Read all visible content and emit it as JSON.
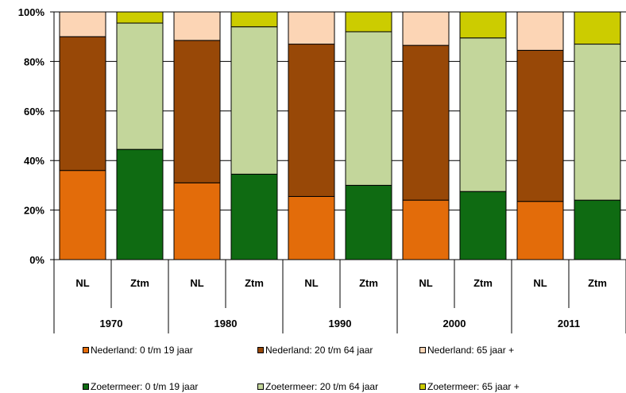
{
  "chart_data": {
    "type": "bar",
    "stacked": true,
    "percent": true,
    "y_ticks": [
      "0%",
      "20%",
      "40%",
      "60%",
      "80%",
      "100%"
    ],
    "ylim": [
      0,
      100
    ],
    "grid": true,
    "legend_position": "bottom",
    "groups": [
      "1970",
      "1980",
      "1990",
      "2000",
      "2011"
    ],
    "categories": [
      "NL",
      "Ztm",
      "NL",
      "Ztm",
      "NL",
      "Ztm",
      "NL",
      "Ztm",
      "NL",
      "Ztm"
    ],
    "series": [
      {
        "name": "Nederland:  0  t/m 19 jaar",
        "color": "#e36c0a",
        "values": [
          36,
          null,
          31,
          null,
          25.5,
          null,
          24,
          null,
          23.5,
          null
        ]
      },
      {
        "name": "Nederland:  20 t/m 64 jaar",
        "color": "#984807",
        "values": [
          54,
          null,
          57.5,
          null,
          61.5,
          null,
          62.5,
          null,
          61,
          null
        ]
      },
      {
        "name": "Nederland:  65 jaar +",
        "color": "#fcd5b5",
        "values": [
          10,
          null,
          11.5,
          null,
          13,
          null,
          13.5,
          null,
          15.5,
          null
        ]
      },
      {
        "name": "Zoetermeer:    0  t/m 19 jaar",
        "color": "#0f6b12",
        "values": [
          null,
          44.5,
          null,
          34.5,
          null,
          30,
          null,
          27.5,
          null,
          24
        ]
      },
      {
        "name": "Zoetermeer:   20 t/m 64 jaar",
        "color": "#c3d69b",
        "values": [
          null,
          51,
          null,
          59.5,
          null,
          62,
          null,
          62,
          null,
          63
        ]
      },
      {
        "name": "Zoetermeer:   65 jaar +",
        "color": "#cccc00",
        "values": [
          null,
          4.5,
          null,
          6,
          null,
          8,
          null,
          10.5,
          null,
          13
        ]
      }
    ]
  }
}
